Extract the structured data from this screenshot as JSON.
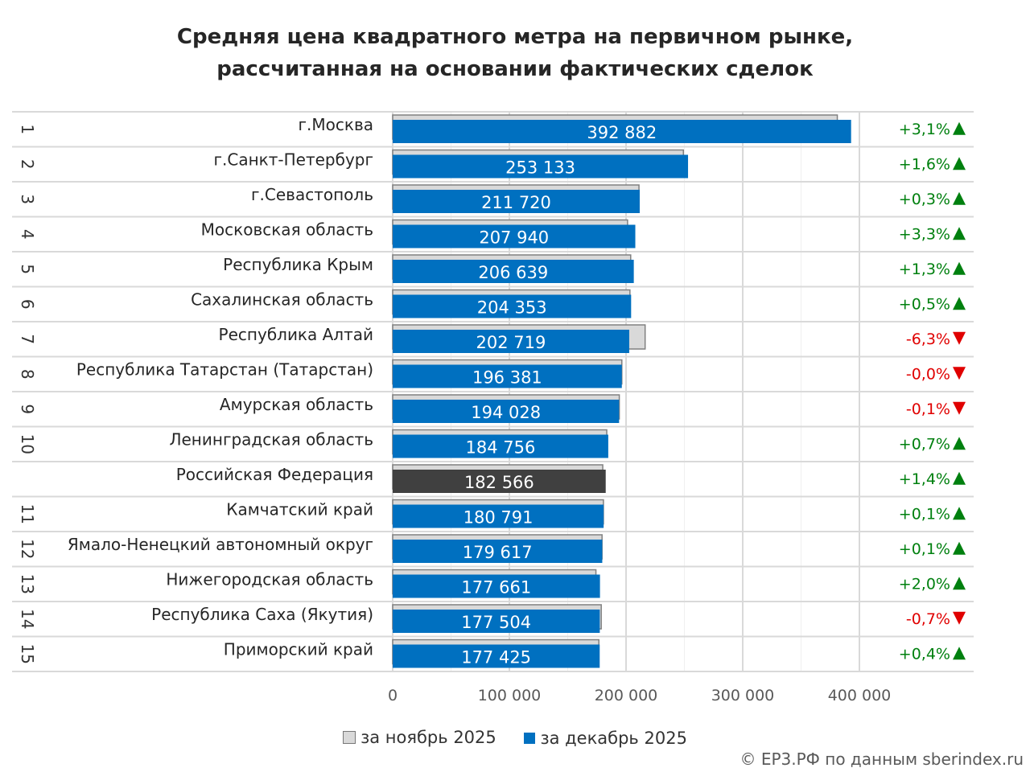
{
  "chart_data": {
    "type": "bar",
    "title_line1": "Средняя цена квадратного метра на первичном рынке,",
    "title_line2": "рассчитанная на основании фактических сделок",
    "categories": [
      "г.Москва",
      "г.Санкт-Петербург",
      "г.Севастополь",
      "Московская область",
      "Республика Крым",
      "Сахалинская область",
      "Республика Алтай",
      "Республика Татарстан (Татарстан)",
      "Амурская область",
      "Ленинградская область",
      "Российская Федерация",
      "Камчатский край",
      "Ямало-Ненецкий автономный округ",
      "Нижегородская область",
      "Республика Саха (Якутия)",
      "Приморский край"
    ],
    "ranks": [
      "1",
      "2",
      "3",
      "4",
      "5",
      "6",
      "7",
      "8",
      "9",
      "10",
      "",
      "11",
      "12",
      "13",
      "14",
      "15"
    ],
    "series": [
      {
        "name": "за ноябрь 2025",
        "color": "#d9d9d9",
        "values": [
          381069,
          249147,
          211087,
          201297,
          203987,
          203336,
          216349,
          196400,
          194222,
          183472,
          180045,
          180610,
          179438,
          174177,
          178755,
          176718
        ]
      },
      {
        "name": "за декабрь 2025",
        "color": "#0070c0",
        "highlight_color": "#404040",
        "values": [
          392882,
          253133,
          211720,
          207940,
          206639,
          204353,
          202719,
          196381,
          194028,
          184756,
          182566,
          180791,
          179617,
          177661,
          177504,
          177425
        ]
      }
    ],
    "value_labels": [
      "392 882",
      "253 133",
      "211 720",
      "207 940",
      "206 639",
      "204 353",
      "202 719",
      "196 381",
      "194 028",
      "184 756",
      "182 566",
      "180 791",
      "179 617",
      "177 661",
      "177 504",
      "177 425"
    ],
    "changes": [
      "+3,1%",
      "+1,6%",
      "+0,3%",
      "+3,3%",
      "+1,3%",
      "+0,5%",
      "-6,3%",
      "-0,0%",
      "-0,1%",
      "+0,7%",
      "+1,4%",
      "+0,1%",
      "+0,1%",
      "+2,0%",
      "-0,7%",
      "+0,4%"
    ],
    "xticks": [
      0,
      100000,
      200000,
      300000,
      400000
    ],
    "xtick_labels": [
      "0",
      "100 000",
      "200 000",
      "300 000",
      "400 000"
    ],
    "xlim": [
      0,
      430000
    ],
    "grid": true,
    "legend_position": "bottom",
    "up_color": "#00800f",
    "down_color": "#e00000"
  },
  "credit": "© ЕР3.РФ по данным sberindex.ru"
}
